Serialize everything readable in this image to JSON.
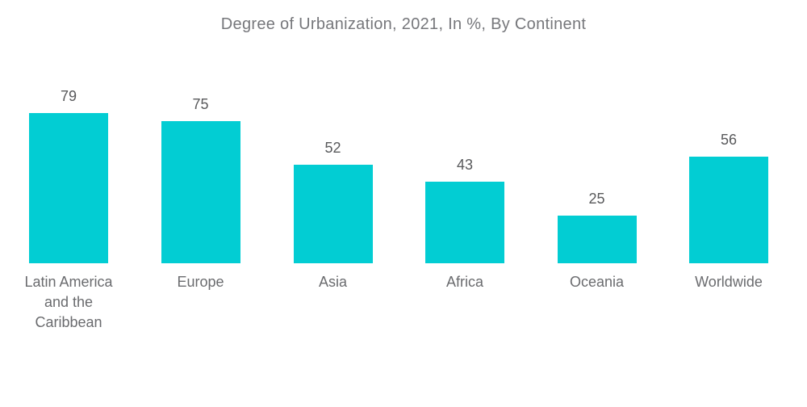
{
  "chart_data": {
    "type": "bar",
    "title": "Degree of Urbanization, 2021, In %, By Continent",
    "categories": [
      "Latin America and the Caribbean",
      "Europe",
      "Asia",
      "Africa",
      "Oceania",
      "Worldwide"
    ],
    "values": [
      79,
      75,
      52,
      43,
      25,
      56
    ],
    "unit": "%",
    "ylim": [
      0,
      100
    ],
    "grid": false,
    "legend": false,
    "axes_visible": false,
    "value_labels_position": "above-bars",
    "bar_color": "#02CDD3",
    "title_color": "#76777B",
    "value_label_color": "#58595B",
    "category_label_color": "#6A6B6E",
    "background_color": "#FFFFFF"
  }
}
